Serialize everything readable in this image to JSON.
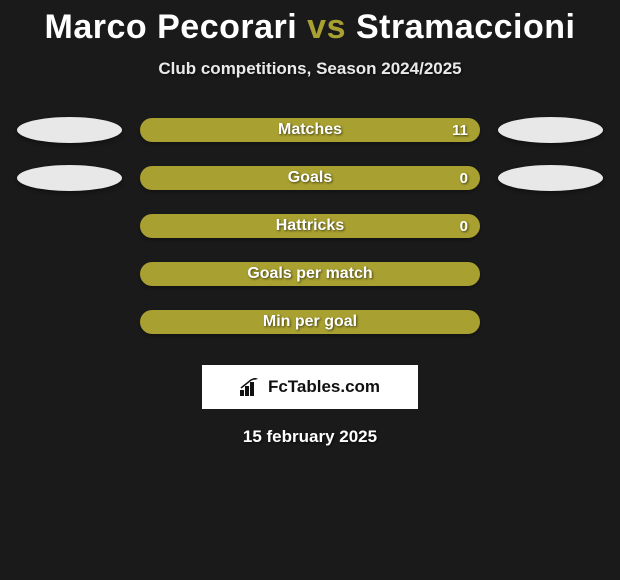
{
  "title": {
    "player1": "Marco Pecorari",
    "vs": "vs",
    "player2": "Stramaccioni"
  },
  "subtitle": "Club competitions, Season 2024/2025",
  "stats": [
    {
      "label": "Matches",
      "value": "11",
      "show_ellipses": true
    },
    {
      "label": "Goals",
      "value": "0",
      "show_ellipses": true
    },
    {
      "label": "Hattricks",
      "value": "0",
      "show_ellipses": false
    },
    {
      "label": "Goals per match",
      "value": "",
      "show_ellipses": false
    },
    {
      "label": "Min per goal",
      "value": "",
      "show_ellipses": false
    }
  ],
  "brand": "FcTables.com",
  "date": "15 february 2025",
  "colors": {
    "bar": "#a8a030",
    "ellipse": "#e8e8e8",
    "bg": "#1a1a1a"
  }
}
